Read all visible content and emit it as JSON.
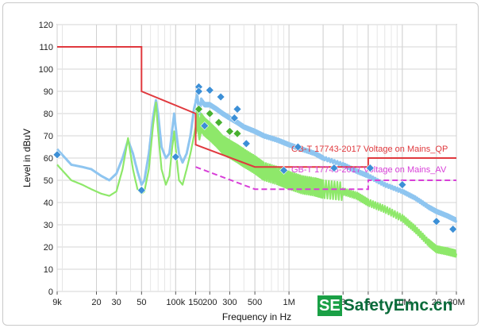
{
  "chart_data": {
    "type": "line",
    "xlabel": "Frequency in Hz",
    "ylabel": "Level in dBuV",
    "xscale": "log",
    "xlim": [
      9000,
      30000000
    ],
    "ylim": [
      0,
      120
    ],
    "y_ticks": [
      0,
      10,
      20,
      30,
      40,
      50,
      60,
      70,
      80,
      90,
      100,
      110,
      120
    ],
    "x_ticks": [
      {
        "v": 9000,
        "label": "9k"
      },
      {
        "v": 20000,
        "label": "20"
      },
      {
        "v": 30000,
        "label": "30"
      },
      {
        "v": 50000,
        "label": "50"
      },
      {
        "v": 100000,
        "label": "100k"
      },
      {
        "v": 150000,
        "label": "150"
      },
      {
        "v": 200000,
        "label": "200"
      },
      {
        "v": 300000,
        "label": "300"
      },
      {
        "v": 500000,
        "label": "500"
      },
      {
        "v": 1000000,
        "label": "1M"
      },
      {
        "v": 2000000,
        "label": "2"
      },
      {
        "v": 3000000,
        "label": "3"
      },
      {
        "v": 5000000,
        "label": "5"
      },
      {
        "v": 10000000,
        "label": "10M"
      },
      {
        "v": 20000000,
        "label": "20"
      },
      {
        "v": 30000000,
        "label": "30M"
      }
    ],
    "grid": true,
    "limits": [
      {
        "name": "GB-T 17743-2017 Voltage on Mains_QP",
        "color": "#e0393e",
        "points": [
          [
            9000,
            110
          ],
          [
            50000,
            110
          ],
          [
            50000,
            90
          ],
          [
            150000,
            80
          ],
          [
            150000,
            66
          ],
          [
            500000,
            56
          ],
          [
            5000000,
            56
          ],
          [
            5000000,
            60
          ],
          [
            30000000,
            60
          ]
        ]
      },
      {
        "name": "GB-T 17743-2017 Voltage on Mains_AV",
        "color": "#d83fd8",
        "points": [
          [
            150000,
            56
          ],
          [
            500000,
            46
          ],
          [
            5000000,
            46
          ],
          [
            5000000,
            50
          ],
          [
            30000000,
            50
          ]
        ]
      }
    ],
    "series": [
      {
        "color": "#8ec5f0",
        "x": [
          9000,
          12000,
          15000,
          18000,
          22000,
          26000,
          30000,
          34000,
          38000,
          42000,
          46000,
          50000,
          53000,
          58000,
          63000,
          67000,
          70000,
          75000,
          82000,
          88000,
          92000,
          97000,
          102000,
          107000,
          115000,
          125000,
          135000,
          145000,
          155000,
          162000,
          168000,
          180000,
          200000,
          230000,
          260000,
          300000,
          350000,
          400000,
          500000,
          600000,
          800000,
          1000000,
          1300000,
          1700000,
          2000000,
          3000000,
          4000000,
          5000000,
          7000000,
          10000000,
          13000000,
          17000000,
          20000000,
          25000000,
          30000000
        ],
        "y": [
          64,
          57,
          56,
          55,
          52,
          50,
          53,
          60,
          68,
          62,
          54,
          48,
          50,
          62,
          78,
          86,
          80,
          65,
          60,
          62,
          70,
          80,
          70,
          62,
          58,
          62,
          70,
          82,
          88,
          80,
          86,
          84,
          84,
          82,
          80,
          78,
          76,
          74,
          72,
          70,
          68,
          66,
          64,
          62,
          60,
          57,
          54,
          52,
          48,
          45,
          42,
          38,
          36,
          34,
          32
        ]
      },
      {
        "color": "#8ee86a",
        "x": [
          9000,
          12000,
          15000,
          18000,
          22000,
          26000,
          30000,
          34000,
          38000,
          42000,
          46000,
          50000,
          53000,
          58000,
          63000,
          67000,
          70000,
          75000,
          82000,
          88000,
          92000,
          97000,
          102000,
          107000,
          115000,
          125000,
          135000,
          145000,
          155000,
          162000,
          168000,
          180000,
          200000,
          230000,
          260000,
          300000,
          350000,
          400000,
          500000,
          600000,
          800000,
          1000000,
          1300000,
          1700000,
          2000000,
          3000000,
          4000000,
          5000000,
          7000000,
          10000000,
          13000000,
          17000000,
          20000000,
          25000000,
          30000000
        ],
        "y": [
          57,
          50,
          48,
          46,
          44,
          43,
          45,
          55,
          69,
          55,
          46,
          44,
          45,
          55,
          74,
          85,
          72,
          55,
          48,
          52,
          62,
          72,
          60,
          50,
          48,
          55,
          62,
          70,
          78,
          72,
          76,
          74,
          72,
          69,
          66,
          64,
          62,
          60,
          57,
          54,
          52,
          50,
          48,
          47,
          46,
          45,
          43,
          40,
          37,
          33,
          28,
          22,
          19,
          18,
          17
        ]
      }
    ],
    "markers": [
      {
        "color": "#3c8fd6",
        "points": [
          [
            9000,
            61.5
          ],
          [
            50000,
            45.5
          ],
          [
            100000,
            60.5
          ],
          [
            160000,
            92
          ],
          [
            160000,
            90
          ],
          [
            200000,
            90.5
          ],
          [
            180000,
            74.5
          ],
          [
            250000,
            87.5
          ],
          [
            330000,
            78
          ],
          [
            350000,
            82
          ],
          [
            420000,
            66.5
          ],
          [
            900000,
            54.5
          ],
          [
            1200000,
            65
          ],
          [
            2500000,
            55.5
          ],
          [
            5200000,
            55.5
          ],
          [
            10000000,
            48
          ],
          [
            20000000,
            31.5
          ],
          [
            28000000,
            28
          ]
        ]
      },
      {
        "color": "#48b030",
        "points": [
          [
            160000,
            82
          ],
          [
            200000,
            80
          ],
          [
            240000,
            76
          ],
          [
            300000,
            72
          ],
          [
            350000,
            71
          ]
        ]
      }
    ]
  },
  "watermark": {
    "box": "SE",
    "text": "SafetyEmc.cn"
  }
}
